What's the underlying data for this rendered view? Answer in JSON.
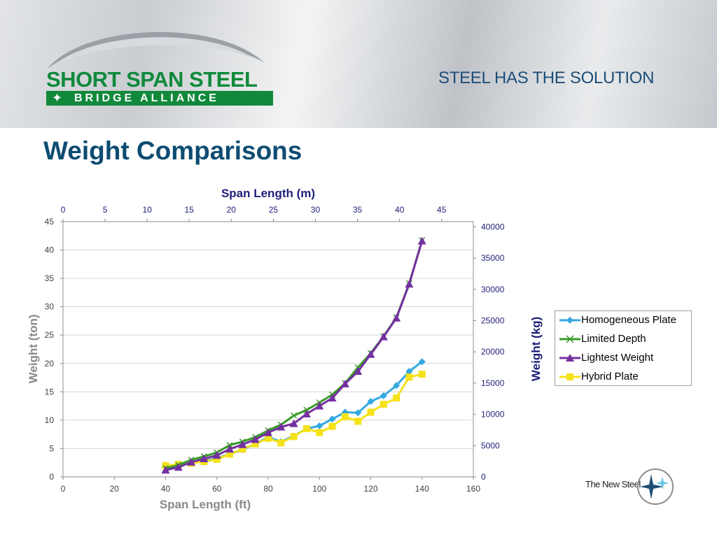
{
  "header": {
    "logo_top": "SHORT SPAN STEEL",
    "logo_bottom": "BRIDGE ALLIANCE",
    "tagline": "STEEL HAS THE SOLUTION"
  },
  "slide_title": "Weight Comparisons",
  "footer": {
    "brand": "The New Steel"
  },
  "chart_data": {
    "type": "line",
    "x_primary": {
      "label": "Span Length (ft)",
      "range": [
        0,
        160
      ],
      "ticks": [
        0,
        20,
        40,
        60,
        80,
        100,
        120,
        140,
        160
      ]
    },
    "x_secondary": {
      "label": "Span Length (m)",
      "range": [
        0,
        48.77
      ],
      "ticks": [
        0,
        5,
        10,
        15,
        20,
        25,
        30,
        35,
        40,
        45
      ]
    },
    "y_primary": {
      "label": "Weight (ton)",
      "range": [
        0,
        45
      ],
      "ticks": [
        0,
        5,
        10,
        15,
        20,
        25,
        30,
        35,
        40,
        45
      ]
    },
    "y_secondary": {
      "label": "Weight (kg)",
      "range": [
        0,
        40823
      ],
      "ticks": [
        0,
        5000,
        10000,
        15000,
        20000,
        25000,
        30000,
        35000,
        40000
      ]
    },
    "grid": true,
    "legend_position": "right",
    "series": [
      {
        "name": "Homogeneous Plate",
        "color": "#35a8e0",
        "marker": "diamond",
        "x": [
          40,
          45,
          50,
          55,
          60,
          65,
          70,
          75,
          80,
          85,
          90,
          95,
          100,
          105,
          110,
          115,
          120,
          125,
          130,
          135,
          140
        ],
        "y": [
          1.8,
          2.0,
          2.4,
          2.8,
          3.3,
          4.0,
          4.8,
          5.8,
          7.0,
          6.2,
          7.2,
          8.5,
          9.0,
          10.2,
          11.4,
          11.3,
          13.3,
          14.3,
          16.1,
          18.6,
          20.3
        ]
      },
      {
        "name": "Limited Depth",
        "color": "#3a9b2a",
        "marker": "x",
        "x": [
          40,
          45,
          50,
          55,
          60,
          65,
          70,
          75,
          80,
          85,
          90,
          95,
          100,
          105,
          110,
          115,
          120,
          125,
          130,
          135,
          140
        ],
        "y": [
          1.5,
          2.1,
          3.0,
          3.6,
          4.3,
          5.6,
          6.2,
          7.0,
          8.2,
          9.2,
          10.8,
          11.8,
          13.1,
          14.5,
          16.5,
          19.3,
          21.8,
          24.8,
          28.1,
          34.1,
          41.7
        ]
      },
      {
        "name": "Lightest Weight",
        "color": "#7530a0",
        "marker": "triangle",
        "x": [
          40,
          45,
          50,
          55,
          60,
          65,
          70,
          75,
          80,
          85,
          90,
          95,
          100,
          105,
          110,
          115,
          120,
          125,
          130,
          135,
          140
        ],
        "y": [
          1.2,
          1.7,
          2.6,
          3.2,
          3.8,
          4.9,
          5.7,
          6.6,
          7.8,
          8.8,
          9.4,
          11.1,
          12.5,
          13.9,
          16.4,
          18.6,
          21.6,
          24.7,
          28.0,
          34.0,
          41.6
        ]
      },
      {
        "name": "Hybrid Plate",
        "color": "#f5e21a",
        "marker": "square",
        "x": [
          40,
          45,
          50,
          55,
          60,
          65,
          70,
          75,
          80,
          85,
          90,
          95,
          100,
          105,
          110,
          115,
          120,
          125,
          130,
          135,
          140
        ],
        "y": [
          2.0,
          2.2,
          2.4,
          2.7,
          3.1,
          4.0,
          4.9,
          5.8,
          6.8,
          6.0,
          7.1,
          8.5,
          7.8,
          8.9,
          10.6,
          9.8,
          11.4,
          12.8,
          13.9,
          17.6,
          18.1
        ]
      }
    ]
  }
}
